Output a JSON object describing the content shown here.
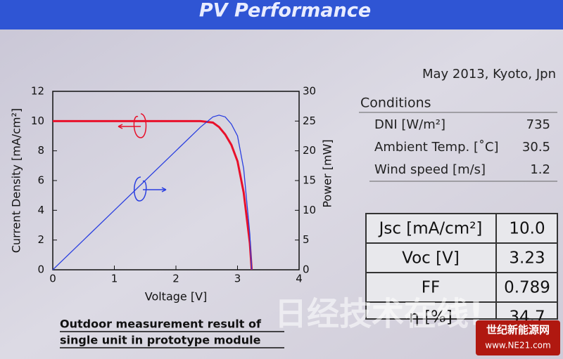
{
  "header": {
    "title": "PV Performance"
  },
  "date": "May 2013, Kyoto, Jpn",
  "chart_data": {
    "type": "line",
    "x": [
      0,
      0.5,
      1,
      1.5,
      2,
      2.4,
      2.6,
      2.7,
      2.8,
      2.9,
      3.0,
      3.1,
      3.2,
      3.23
    ],
    "x_label": "Voltage [V]",
    "y_label": "Current Density [mA/cm²]",
    "y2_label": "Power [mW]",
    "xlim": [
      0,
      4
    ],
    "xticks": [
      0,
      1,
      2,
      3,
      4
    ],
    "ylim": [
      0,
      12
    ],
    "yticks": [
      0,
      2,
      4,
      6,
      8,
      10,
      12
    ],
    "y2lim": [
      0,
      30
    ],
    "y2ticks": [
      0,
      5,
      10,
      15,
      20,
      25,
      30
    ],
    "series": [
      {
        "name": "Current Density",
        "color": "#e8102a",
        "values": [
          10,
          10,
          10,
          10,
          10,
          10,
          9.9,
          9.6,
          9.1,
          8.4,
          7.3,
          5.2,
          1.8,
          0
        ]
      },
      {
        "name": "Power",
        "color": "#2a3fe0",
        "axis": "y2",
        "values": [
          0,
          5,
          10,
          15,
          20,
          24,
          25.7,
          26,
          25.7,
          24.5,
          22.5,
          17,
          6,
          0
        ]
      }
    ]
  },
  "conditions": {
    "title": "Conditions",
    "rows": [
      [
        "DNI [W/m²]",
        "735"
      ],
      [
        "Ambient Temp. [˚C]",
        "30.5"
      ],
      [
        "Wind speed [m/s]",
        "1.2"
      ]
    ]
  },
  "results": {
    "rows": [
      [
        "Jsc [mA/cm²]",
        "10.0"
      ],
      [
        "Voc [V]",
        "3.23"
      ],
      [
        "FF",
        "0.789"
      ],
      [
        "η [%]",
        "34.7"
      ]
    ]
  },
  "caption": [
    "Outdoor measurement result of",
    "single unit in prototype module"
  ],
  "watermarks": [
    "日经技术在线!",
    "世纪新能源网",
    "www.NE21.com"
  ]
}
